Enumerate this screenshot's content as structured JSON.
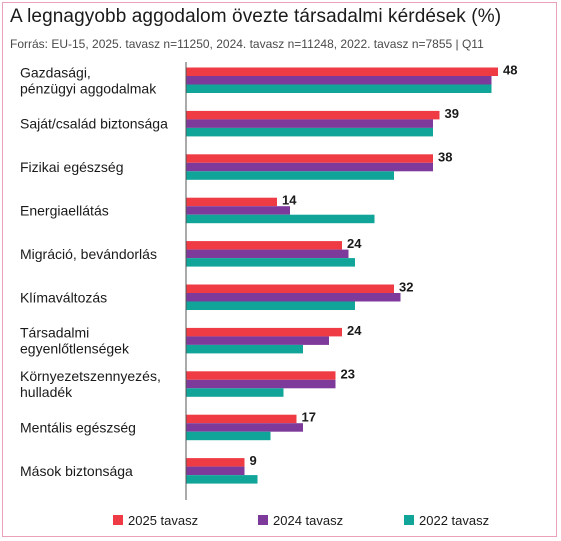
{
  "chart_data": {
    "type": "bar",
    "orientation": "horizontal",
    "title": "A legnagyobb aggodalom övezte társadalmi kérdések (%)",
    "subtitle": "Forrás: EU-15, 2025. tavasz n=11250, 2024. tavasz n=11248, 2022. tavasz n=7855 | Q11",
    "categories": [
      [
        "Gazdasági,",
        "pénzügyi aggodalmak"
      ],
      [
        "Saját/család biztonsága"
      ],
      [
        "Fizikai egészség"
      ],
      [
        "Energiaellátás"
      ],
      [
        "Migráció, bevándorlás"
      ],
      [
        "Klímaváltozás"
      ],
      [
        "Társadalmi",
        "egyenlőtlenségek"
      ],
      [
        "Környezetszennyezés,",
        "hulladék"
      ],
      [
        "Mentális egészség"
      ],
      [
        "Mások biztonsága"
      ]
    ],
    "series": [
      {
        "name": "2025 tavasz",
        "color": "#ee3b44",
        "values": [
          48,
          39,
          38,
          14,
          24,
          32,
          24,
          23,
          17,
          9
        ]
      },
      {
        "name": "2024 tavasz",
        "color": "#7d3a9b",
        "values": [
          47,
          38,
          38,
          16,
          25,
          33,
          22,
          23,
          18,
          9
        ]
      },
      {
        "name": "2022 tavasz",
        "color": "#11a59a",
        "values": [
          47,
          38,
          32,
          29,
          26,
          26,
          18,
          15,
          13,
          11
        ]
      }
    ],
    "data_labels": "series 2025 tavasz",
    "xlim": [
      0,
      50
    ],
    "grid": false,
    "legend_position": "bottom"
  }
}
